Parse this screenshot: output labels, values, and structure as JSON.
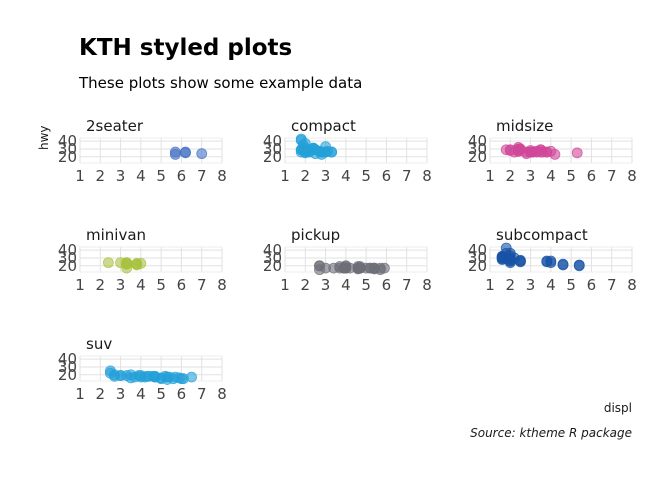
{
  "chart_data": {
    "type": "scatter",
    "title": "KTH styled plots",
    "subtitle": "These plots show some example data",
    "xlabel": "displ",
    "ylabel": "hwy",
    "caption": "Source: ktheme R package",
    "xlim": [
      1,
      8
    ],
    "xticks": [
      "1",
      "2",
      "3",
      "4",
      "5",
      "6",
      "7",
      "8"
    ],
    "ylim": [
      12,
      44
    ],
    "yticks": [
      "20",
      "30",
      "40"
    ],
    "grid": true,
    "panels": [
      {
        "name": "2seater",
        "color": "#4472c4",
        "points": [
          [
            5.7,
            26
          ],
          [
            5.7,
            23
          ],
          [
            6.2,
            26
          ],
          [
            6.2,
            25
          ],
          [
            7.0,
            24
          ]
        ]
      },
      {
        "name": "compact",
        "color": "#24a0d8",
        "points": [
          [
            1.8,
            29
          ],
          [
            1.8,
            29
          ],
          [
            2.0,
            31
          ],
          [
            2.0,
            30
          ],
          [
            2.8,
            26
          ],
          [
            2.8,
            26
          ],
          [
            3.1,
            27
          ],
          [
            1.8,
            26
          ],
          [
            2.0,
            25
          ],
          [
            2.0,
            28
          ],
          [
            2.2,
            27
          ],
          [
            2.2,
            29
          ],
          [
            2.4,
            31
          ],
          [
            2.4,
            31
          ],
          [
            3.0,
            26
          ],
          [
            3.3,
            26
          ],
          [
            1.8,
            44
          ],
          [
            1.8,
            41
          ],
          [
            1.9,
            29
          ],
          [
            2.0,
            26
          ],
          [
            2.5,
            29
          ],
          [
            2.5,
            29
          ],
          [
            2.8,
            23
          ],
          [
            2.5,
            24
          ],
          [
            3.0,
            26
          ],
          [
            3.3,
            26
          ],
          [
            2.2,
            26
          ],
          [
            2.7,
            27
          ],
          [
            2.4,
            30
          ],
          [
            3.0,
            33
          ],
          [
            1.9,
            35
          ],
          [
            2.0,
            37
          ]
        ]
      },
      {
        "name": "midsize",
        "color": "#d0479a",
        "points": [
          [
            2.4,
            27
          ],
          [
            2.4,
            30
          ],
          [
            3.1,
            26
          ],
          [
            3.5,
            29
          ],
          [
            3.6,
            26
          ],
          [
            2.4,
            29
          ],
          [
            3.0,
            26
          ],
          [
            3.5,
            26
          ],
          [
            3.3,
            26
          ],
          [
            3.8,
            26
          ],
          [
            3.8,
            26
          ],
          [
            4.0,
            27
          ],
          [
            2.0,
            29
          ],
          [
            2.0,
            28
          ],
          [
            2.4,
            29
          ],
          [
            2.5,
            29
          ],
          [
            2.8,
            26
          ],
          [
            3.1,
            26
          ],
          [
            2.2,
            26
          ],
          [
            2.4,
            27
          ],
          [
            2.5,
            30
          ],
          [
            3.0,
            26
          ],
          [
            3.5,
            29
          ],
          [
            1.8,
            29
          ],
          [
            2.8,
            24
          ],
          [
            4.2,
            23
          ],
          [
            5.3,
            25
          ],
          [
            2.4,
            32
          ],
          [
            3.0,
            28
          ],
          [
            3.3,
            27
          ]
        ]
      },
      {
        "name": "minivan",
        "color": "#a9c23f",
        "points": [
          [
            2.4,
            24
          ],
          [
            3.0,
            24
          ],
          [
            3.3,
            22
          ],
          [
            3.3,
            22
          ],
          [
            3.3,
            24
          ],
          [
            3.3,
            24
          ],
          [
            3.3,
            17
          ],
          [
            3.8,
            22
          ],
          [
            3.8,
            21
          ],
          [
            3.8,
            23
          ],
          [
            4.0,
            23
          ]
        ]
      },
      {
        "name": "pickup",
        "color": "#6e6e78",
        "points": [
          [
            2.7,
            20
          ],
          [
            2.7,
            15
          ],
          [
            2.7,
            20
          ],
          [
            3.0,
            17
          ],
          [
            3.7,
            17
          ],
          [
            3.7,
            19
          ],
          [
            3.9,
            17
          ],
          [
            3.9,
            17
          ],
          [
            4.7,
            17
          ],
          [
            4.7,
            17
          ],
          [
            4.7,
            17
          ],
          [
            5.2,
            17
          ],
          [
            5.2,
            17
          ],
          [
            5.7,
            17
          ],
          [
            5.9,
            17
          ],
          [
            4.2,
            17
          ],
          [
            4.6,
            17
          ],
          [
            4.6,
            16
          ],
          [
            4.6,
            17
          ],
          [
            5.4,
            17
          ],
          [
            5.4,
            16
          ],
          [
            5.4,
            17
          ],
          [
            4.0,
            17
          ],
          [
            4.0,
            17
          ],
          [
            4.0,
            19
          ],
          [
            4.0,
            17
          ],
          [
            4.6,
            19
          ],
          [
            5.0,
            17
          ],
          [
            3.4,
            17
          ],
          [
            4.0,
            20
          ],
          [
            4.7,
            19
          ],
          [
            4.7,
            17
          ],
          [
            5.7,
            15
          ]
        ]
      },
      {
        "name": "subcompact",
        "color": "#1954a6",
        "points": [
          [
            1.6,
            32
          ],
          [
            1.6,
            31
          ],
          [
            1.6,
            30
          ],
          [
            1.6,
            29
          ],
          [
            1.6,
            32
          ],
          [
            1.8,
            36
          ],
          [
            1.8,
            29
          ],
          [
            2.0,
            36
          ],
          [
            2.0,
            33
          ],
          [
            2.0,
            26
          ],
          [
            2.0,
            29
          ],
          [
            2.0,
            30
          ],
          [
            2.0,
            28
          ],
          [
            2.5,
            26
          ],
          [
            2.5,
            27
          ],
          [
            3.8,
            26
          ],
          [
            3.8,
            25
          ],
          [
            4.0,
            26
          ],
          [
            4.0,
            24
          ],
          [
            4.6,
            21
          ],
          [
            4.6,
            22
          ],
          [
            5.4,
            20
          ],
          [
            5.4,
            21
          ],
          [
            1.8,
            44
          ],
          [
            2.0,
            24
          ],
          [
            2.5,
            25
          ],
          [
            2.0,
            26
          ],
          [
            1.6,
            28
          ],
          [
            1.9,
            30
          ],
          [
            2.2,
            30
          ]
        ]
      },
      {
        "name": "suv",
        "color": "#24a0d8",
        "points": [
          [
            2.5,
            22
          ],
          [
            2.7,
            20
          ],
          [
            3.0,
            19
          ],
          [
            3.3,
            19
          ],
          [
            3.5,
            16
          ],
          [
            3.9,
            19
          ],
          [
            4.0,
            17
          ],
          [
            4.2,
            17
          ],
          [
            4.4,
            18
          ],
          [
            4.6,
            18
          ],
          [
            4.7,
            17
          ],
          [
            5.0,
            15
          ],
          [
            5.2,
            18
          ],
          [
            5.3,
            14
          ],
          [
            5.4,
            17
          ],
          [
            5.7,
            17
          ],
          [
            5.9,
            16
          ],
          [
            6.1,
            15
          ],
          [
            6.5,
            17
          ],
          [
            3.7,
            17
          ],
          [
            4.3,
            18
          ],
          [
            4.7,
            18
          ],
          [
            5.0,
            16
          ],
          [
            5.6,
            15
          ],
          [
            2.5,
            25
          ],
          [
            3.0,
            19
          ],
          [
            3.5,
            20
          ],
          [
            4.0,
            19
          ],
          [
            4.7,
            17
          ],
          [
            5.3,
            17
          ],
          [
            6.0,
            15
          ],
          [
            2.7,
            18
          ]
        ]
      }
    ]
  }
}
